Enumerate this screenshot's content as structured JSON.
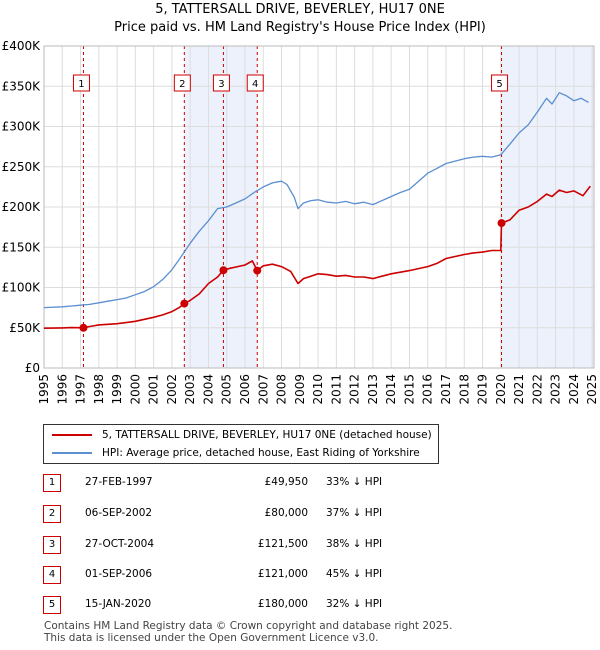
{
  "chart_data": {
    "type": "line",
    "title": "5, TATTERSALL DRIVE, BEVERLEY, HU17 0NE",
    "subtitle": "Price paid vs. HM Land Registry's House Price Index (HPI)",
    "xlabel": "",
    "ylabel": "",
    "xlim": [
      1995,
      2025.1
    ],
    "ylim": [
      0,
      400000
    ],
    "y_ticks": [
      {
        "value": 0,
        "label": "£0"
      },
      {
        "value": 50000,
        "label": "£50K"
      },
      {
        "value": 100000,
        "label": "£100K"
      },
      {
        "value": 150000,
        "label": "£150K"
      },
      {
        "value": 200000,
        "label": "£200K"
      },
      {
        "value": 250000,
        "label": "£250K"
      },
      {
        "value": 300000,
        "label": "£300K"
      },
      {
        "value": 350000,
        "label": "£350K"
      },
      {
        "value": 400000,
        "label": "£400K"
      }
    ],
    "x_ticks": [
      "1995",
      "1996",
      "1997",
      "1998",
      "1999",
      "2000",
      "2001",
      "2002",
      "2003",
      "2004",
      "2005",
      "2006",
      "2007",
      "2008",
      "2009",
      "2010",
      "2011",
      "2012",
      "2013",
      "2014",
      "2015",
      "2016",
      "2017",
      "2018",
      "2019",
      "2020",
      "2021",
      "2022",
      "2023",
      "2024",
      "2025"
    ],
    "series": [
      {
        "name": "5, TATTERSALL DRIVE, BEVERLEY, HU17 0NE (detached house)",
        "color": "#cc0000",
        "x": [
          1995.0,
          1996.0,
          1996.5,
          1997.16,
          1997.5,
          1998.0,
          1999.0,
          2000.0,
          2001.0,
          2001.5,
          2002.0,
          2002.4,
          2002.68,
          2003.0,
          2003.5,
          2004.0,
          2004.5,
          2004.82,
          2005.2,
          2005.6,
          2006.0,
          2006.4,
          2006.67,
          2007.0,
          2007.5,
          2008.0,
          2008.5,
          2008.9,
          2009.2,
          2009.6,
          2010.0,
          2010.5,
          2011.0,
          2011.5,
          2012.0,
          2012.5,
          2013.0,
          2013.5,
          2014.0,
          2015.0,
          2016.0,
          2016.5,
          2017.0,
          2018.0,
          2018.5,
          2019.0,
          2019.5,
          2020.0,
          2020.04,
          2020.5,
          2021.0,
          2021.5,
          2022.0,
          2022.5,
          2022.8,
          2023.2,
          2023.6,
          2024.0,
          2024.5,
          2024.9
        ],
        "y": [
          49500,
          49800,
          50200,
          49950,
          51500,
          53500,
          55000,
          58000,
          63000,
          66000,
          70000,
          75000,
          80000,
          84000,
          92000,
          105000,
          113000,
          121500,
          124000,
          126000,
          128000,
          133000,
          121000,
          127000,
          129000,
          126000,
          120000,
          105000,
          111000,
          114000,
          117000,
          116000,
          114000,
          115000,
          113000,
          113000,
          111000,
          114000,
          117000,
          121000,
          126000,
          130000,
          136000,
          141000,
          143000,
          144000,
          146000,
          146000,
          180000,
          184000,
          196000,
          200000,
          207000,
          216000,
          213000,
          221000,
          218000,
          220000,
          214000,
          226000
        ]
      },
      {
        "name": "HPI: Average price, detached house, East Riding of Yorkshire",
        "color": "#5b8fd0",
        "x": [
          1995.0,
          1996.0,
          1996.5,
          1997.0,
          1997.5,
          1998.0,
          1998.5,
          1999.0,
          1999.5,
          2000.0,
          2000.5,
          2001.0,
          2001.5,
          2002.0,
          2002.5,
          2003.0,
          2003.5,
          2004.0,
          2004.5,
          2005.0,
          2005.5,
          2006.0,
          2006.5,
          2007.0,
          2007.5,
          2008.0,
          2008.3,
          2008.7,
          2008.9,
          2009.2,
          2009.6,
          2010.0,
          2010.5,
          2011.0,
          2011.5,
          2012.0,
          2012.5,
          2013.0,
          2013.5,
          2014.0,
          2014.5,
          2015.0,
          2015.5,
          2016.0,
          2016.5,
          2017.0,
          2017.5,
          2018.0,
          2018.5,
          2019.0,
          2019.5,
          2020.0,
          2020.5,
          2021.0,
          2021.5,
          2022.0,
          2022.5,
          2022.8,
          2023.2,
          2023.6,
          2024.0,
          2024.4,
          2024.8
        ],
        "y": [
          75000,
          76000,
          77000,
          78000,
          79000,
          81000,
          83000,
          85000,
          87000,
          91000,
          95000,
          101000,
          110000,
          122000,
          138000,
          155000,
          170000,
          183000,
          198000,
          200000,
          205000,
          210000,
          218000,
          225000,
          230000,
          232000,
          228000,
          212000,
          198000,
          205000,
          208000,
          209000,
          206000,
          205000,
          207000,
          204000,
          206000,
          203000,
          208000,
          213000,
          218000,
          222000,
          232000,
          242000,
          248000,
          254000,
          257000,
          260000,
          262000,
          263000,
          262000,
          265000,
          278000,
          292000,
          302000,
          318000,
          335000,
          328000,
          342000,
          338000,
          332000,
          335000,
          330000
        ]
      }
    ],
    "annotations": [
      {
        "label": "1",
        "x": 1997.16,
        "y": 49950
      },
      {
        "label": "2",
        "x": 2002.68,
        "y": 80000
      },
      {
        "label": "3",
        "x": 2004.82,
        "y": 121500
      },
      {
        "label": "4",
        "x": 2006.67,
        "y": 121000
      },
      {
        "label": "5",
        "x": 2020.04,
        "y": 180000
      }
    ],
    "shaded_regions": [
      [
        2002.68,
        2004.82
      ],
      [
        2004.82,
        2006.67
      ],
      [
        2020.04,
        2025.1
      ]
    ],
    "legend_location": "below"
  },
  "transactions": [
    {
      "num": "1",
      "date": "27-FEB-1997",
      "price": "£49,950",
      "hpi": "33% ↓ HPI"
    },
    {
      "num": "2",
      "date": "06-SEP-2002",
      "price": "£80,000",
      "hpi": "37% ↓ HPI"
    },
    {
      "num": "3",
      "date": "27-OCT-2004",
      "price": "£121,500",
      "hpi": "38% ↓ HPI"
    },
    {
      "num": "4",
      "date": "01-SEP-2006",
      "price": "£121,000",
      "hpi": "45% ↓ HPI"
    },
    {
      "num": "5",
      "date": "15-JAN-2020",
      "price": "£180,000",
      "hpi": "32% ↓ HPI"
    }
  ],
  "footer": {
    "line1": "Contains HM Land Registry data © Crown copyright and database right 2025.",
    "line2": "This data is licensed under the Open Government Licence v3.0."
  }
}
